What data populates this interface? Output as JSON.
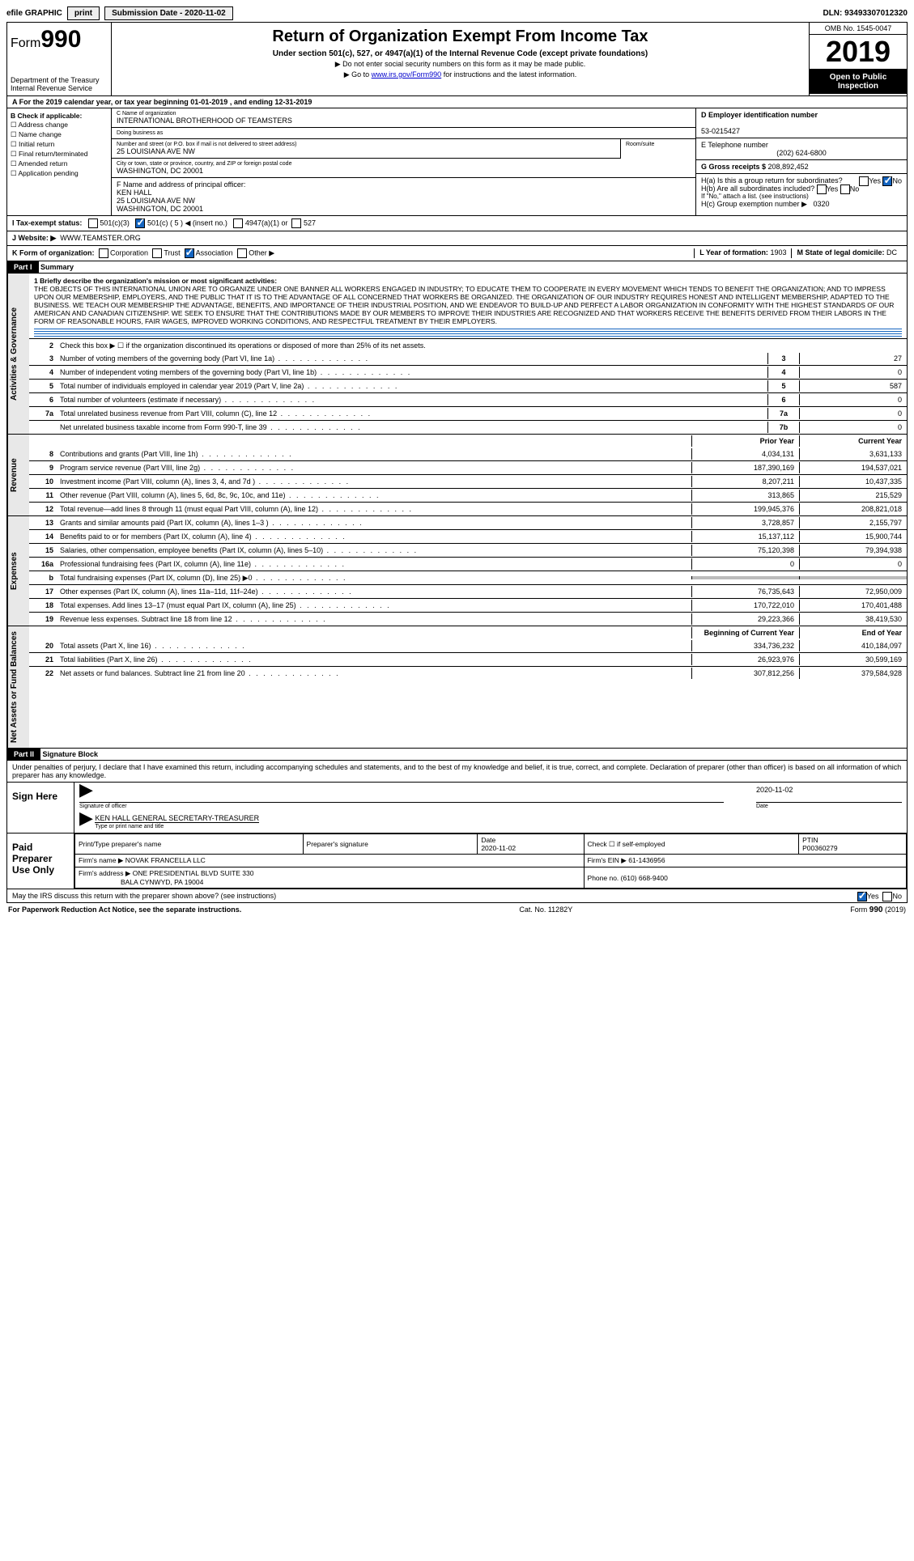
{
  "topbar": {
    "efile": "efile GRAPHIC",
    "print": "print",
    "submission_label": "Submission Date - ",
    "submission_date": "2020-11-02",
    "dln": "DLN: 93493307012320"
  },
  "header": {
    "form_prefix": "Form",
    "form_number": "990",
    "dept": "Department of the Treasury",
    "irs": "Internal Revenue Service",
    "title": "Return of Organization Exempt From Income Tax",
    "subtitle": "Under section 501(c), 527, or 4947(a)(1) of the Internal Revenue Code (except private foundations)",
    "note1": "▶ Do not enter social security numbers on this form as it may be made public.",
    "note2_pre": "▶ Go to ",
    "note2_link": "www.irs.gov/Form990",
    "note2_post": " for instructions and the latest information.",
    "omb": "OMB No. 1545-0047",
    "year": "2019",
    "open": "Open to Public Inspection"
  },
  "period": {
    "label_a": "A For the 2019 calendar year, or tax year beginning ",
    "begin": "01-01-2019",
    "mid": " , and ending ",
    "end": "12-31-2019"
  },
  "colB": {
    "title": "B Check if applicable:",
    "opts": [
      "Address change",
      "Name change",
      "Initial return",
      "Final return/terminated",
      "Amended return",
      "Application pending"
    ]
  },
  "org": {
    "c_label": "C Name of organization",
    "name": "INTERNATIONAL BROTHERHOOD OF TEAMSTERS",
    "dba_label": "Doing business as",
    "addr_label": "Number and street (or P.O. box if mail is not delivered to street address)",
    "addr": "25 LOUISIANA AVE NW",
    "room_label": "Room/suite",
    "city_label": "City or town, state or province, country, and ZIP or foreign postal code",
    "city": "WASHINGTON, DC  20001",
    "f_label": "F  Name and address of principal officer:",
    "officer_name": "KEN HALL",
    "officer_addr1": "25 LOUISIANA AVE NW",
    "officer_addr2": "WASHINGTON, DC  20001"
  },
  "rightcol": {
    "d_label": "D Employer identification number",
    "ein": "53-0215427",
    "e_label": "E Telephone number",
    "phone": "(202) 624-6800",
    "g_label": "G Gross receipts $ ",
    "g_val": "208,892,452",
    "ha": "H(a)  Is this a group return for subordinates?",
    "hb": "H(b)  Are all subordinates included?",
    "hb_note": "If \"No,\" attach a list. (see instructions)",
    "hc": "H(c)  Group exemption number ▶",
    "hc_val": "0320",
    "yes": "Yes",
    "no": "No"
  },
  "taxexempt": {
    "i_label": "I  Tax-exempt status:",
    "c3": "501(c)(3)",
    "c_insert": "501(c) ( 5 ) ◀ (insert no.)",
    "a1": "4947(a)(1) or",
    "s527": "527"
  },
  "website": {
    "j_label": "J  Website: ▶",
    "url": "WWW.TEAMSTER.ORG"
  },
  "korg": {
    "k_label": "K Form of organization:",
    "opts": [
      "Corporation",
      "Trust",
      "Association",
      "Other ▶"
    ],
    "l_label": "L Year of formation: ",
    "l_val": "1903",
    "m_label": "M State of legal domicile: ",
    "m_val": "DC"
  },
  "part1": {
    "hdr": "Part I",
    "title": "Summary",
    "line1_label": "1  Briefly describe the organization's mission or most significant activities:",
    "mission": "THE OBJECTS OF THIS INTERNATIONAL UNION ARE TO ORGANIZE UNDER ONE BANNER ALL WORKERS ENGAGED IN INDUSTRY; TO EDUCATE THEM TO COOPERATE IN EVERY MOVEMENT WHICH TENDS TO BENEFIT THE ORGANIZATION; AND TO IMPRESS UPON OUR MEMBERSHIP, EMPLOYERS, AND THE PUBLIC THAT IT IS TO THE ADVANTAGE OF ALL CONCERNED THAT WORKERS BE ORGANIZED. THE ORGANIZATION OF OUR INDUSTRY REQUIRES HONEST AND INTELLIGENT MEMBERSHIP, ADAPTED TO THE BUSINESS. WE TEACH OUR MEMBERSHIP THE ADVANTAGE, BENEFITS, AND IMPORTANCE OF THEIR INDUSTRIAL POSITION, AND WE ENDEAVOR TO BUILD-UP AND PERFECT A LABOR ORGANIZATION IN CONFORMITY WITH THE HIGHEST STANDARDS OF OUR AMERICAN AND CANADIAN CITIZENSHIP. WE SEEK TO ENSURE THAT THE CONTRIBUTIONS MADE BY OUR MEMBERS TO IMPROVE THEIR INDUSTRIES ARE RECOGNIZED AND THAT WORKERS RECEIVE THE BENEFITS DERIVED FROM THEIR LABORS IN THE FORM OF REASONABLE HOURS, FAIR WAGES, IMPROVED WORKING CONDITIONS, AND RESPECTFUL TREATMENT BY THEIR EMPLOYERS.",
    "line2": "Check this box ▶ ☐ if the organization discontinued its operations or disposed of more than 25% of its net assets.",
    "gov_lines": [
      {
        "n": "3",
        "t": "Number of voting members of the governing body (Part VI, line 1a)",
        "c": "3",
        "v": "27"
      },
      {
        "n": "4",
        "t": "Number of independent voting members of the governing body (Part VI, line 1b)",
        "c": "4",
        "v": "0"
      },
      {
        "n": "5",
        "t": "Total number of individuals employed in calendar year 2019 (Part V, line 2a)",
        "c": "5",
        "v": "587"
      },
      {
        "n": "6",
        "t": "Total number of volunteers (estimate if necessary)",
        "c": "6",
        "v": "0"
      },
      {
        "n": "7a",
        "t": "Total unrelated business revenue from Part VIII, column (C), line 12",
        "c": "7a",
        "v": "0"
      },
      {
        "n": "",
        "t": "Net unrelated business taxable income from Form 990-T, line 39",
        "c": "7b",
        "v": "0"
      }
    ],
    "col_prior": "Prior Year",
    "col_current": "Current Year",
    "rev_lines": [
      {
        "n": "8",
        "t": "Contributions and grants (Part VIII, line 1h)",
        "p": "4,034,131",
        "c": "3,631,133"
      },
      {
        "n": "9",
        "t": "Program service revenue (Part VIII, line 2g)",
        "p": "187,390,169",
        "c": "194,537,021"
      },
      {
        "n": "10",
        "t": "Investment income (Part VIII, column (A), lines 3, 4, and 7d )",
        "p": "8,207,211",
        "c": "10,437,335"
      },
      {
        "n": "11",
        "t": "Other revenue (Part VIII, column (A), lines 5, 6d, 8c, 9c, 10c, and 11e)",
        "p": "313,865",
        "c": "215,529"
      },
      {
        "n": "12",
        "t": "Total revenue—add lines 8 through 11 (must equal Part VIII, column (A), line 12)",
        "p": "199,945,376",
        "c": "208,821,018"
      }
    ],
    "exp_lines": [
      {
        "n": "13",
        "t": "Grants and similar amounts paid (Part IX, column (A), lines 1–3 )",
        "p": "3,728,857",
        "c": "2,155,797"
      },
      {
        "n": "14",
        "t": "Benefits paid to or for members (Part IX, column (A), line 4)",
        "p": "15,137,112",
        "c": "15,900,744"
      },
      {
        "n": "15",
        "t": "Salaries, other compensation, employee benefits (Part IX, column (A), lines 5–10)",
        "p": "75,120,398",
        "c": "79,394,938"
      },
      {
        "n": "16a",
        "t": "Professional fundraising fees (Part IX, column (A), line 11e)",
        "p": "0",
        "c": "0"
      },
      {
        "n": "b",
        "t": "Total fundraising expenses (Part IX, column (D), line 25) ▶0",
        "p": "__GREY__",
        "c": "__GREY__"
      },
      {
        "n": "17",
        "t": "Other expenses (Part IX, column (A), lines 11a–11d, 11f–24e)",
        "p": "76,735,643",
        "c": "72,950,009"
      },
      {
        "n": "18",
        "t": "Total expenses. Add lines 13–17 (must equal Part IX, column (A), line 25)",
        "p": "170,722,010",
        "c": "170,401,488"
      },
      {
        "n": "19",
        "t": "Revenue less expenses. Subtract line 18 from line 12",
        "p": "29,223,366",
        "c": "38,419,530"
      }
    ],
    "col_begin": "Beginning of Current Year",
    "col_end": "End of Year",
    "net_lines": [
      {
        "n": "20",
        "t": "Total assets (Part X, line 16)",
        "p": "334,736,232",
        "c": "410,184,097"
      },
      {
        "n": "21",
        "t": "Total liabilities (Part X, line 26)",
        "p": "26,923,976",
        "c": "30,599,169"
      },
      {
        "n": "22",
        "t": "Net assets or fund balances. Subtract line 21 from line 20",
        "p": "307,812,256",
        "c": "379,584,928"
      }
    ],
    "vtab_gov": "Activities & Governance",
    "vtab_rev": "Revenue",
    "vtab_exp": "Expenses",
    "vtab_net": "Net Assets or Fund Balances"
  },
  "part2": {
    "hdr": "Part II",
    "title": "Signature Block",
    "decl": "Under penalties of perjury, I declare that I have examined this return, including accompanying schedules and statements, and to the best of my knowledge and belief, it is true, correct, and complete. Declaration of preparer (other than officer) is based on all information of which preparer has any knowledge.",
    "sign_here": "Sign Here",
    "sig_officer": "Signature of officer",
    "date_lbl": "Date",
    "sig_date": "2020-11-02",
    "name_title": "KEN HALL  GENERAL SECRETARY-TREASURER",
    "name_title_lbl": "Type or print name and title",
    "paid": "Paid Preparer Use Only",
    "prep_name_lbl": "Print/Type preparer's name",
    "prep_sig_lbl": "Preparer's signature",
    "prep_date": "2020-11-02",
    "self_emp": "Check ☐ if self-employed",
    "ptin_lbl": "PTIN",
    "ptin": "P00360279",
    "firm_name_lbl": "Firm's name    ▶",
    "firm_name": "NOVAK FRANCELLA LLC",
    "firm_ein_lbl": "Firm's EIN ▶",
    "firm_ein": "61-1436956",
    "firm_addr_lbl": "Firm's address ▶",
    "firm_addr1": "ONE PRESIDENTIAL BLVD SUITE 330",
    "firm_addr2": "BALA CYNWYD, PA  19004",
    "phone_lbl": "Phone no.",
    "phone": "(610) 668-9400",
    "discuss": "May the IRS discuss this return with the preparer shown above? (see instructions)"
  },
  "footer": {
    "pra": "For Paperwork Reduction Act Notice, see the separate instructions.",
    "cat": "Cat. No. 11282Y",
    "form": "Form 990 (2019)"
  }
}
